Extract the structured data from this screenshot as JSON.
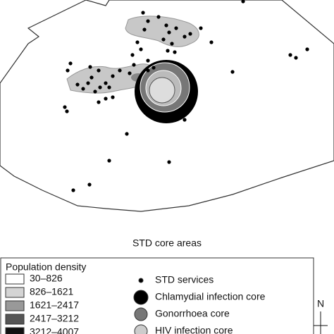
{
  "map": {
    "title": "STD core areas"
  },
  "legend": {
    "title": "Population density",
    "density_classes": [
      "30–826",
      "826–1621",
      "1621–2417",
      "2417–3212",
      "3212–4007"
    ],
    "symbols": [
      "STD services",
      "Chlamydial infection core",
      "Gonorrhoea core",
      "HIV infection core"
    ]
  },
  "north": "N"
}
